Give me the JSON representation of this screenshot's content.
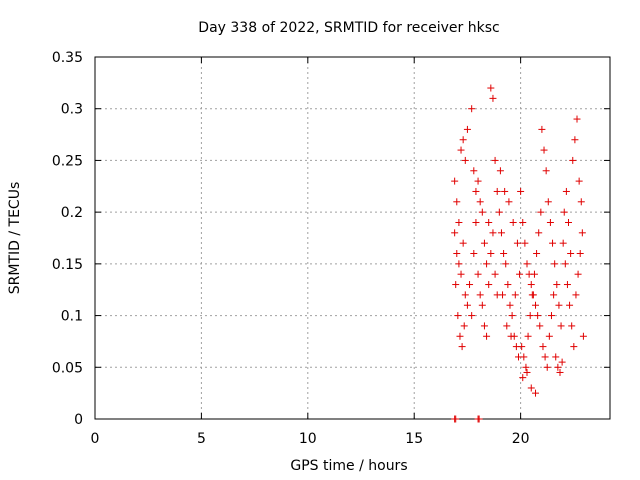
{
  "chart_data": {
    "type": "scatter",
    "title": "Day 338 of 2022, SRMTID for receiver hksc",
    "xlabel": "GPS time / hours",
    "ylabel": "SRMTID / TECUs",
    "xlim": [
      0,
      24.2
    ],
    "ylim": [
      0,
      0.35
    ],
    "xticks": [
      0,
      5,
      10,
      15,
      20
    ],
    "xtick_labels": [
      "0",
      "5",
      "10",
      "15",
      "20"
    ],
    "yticks": [
      0,
      0.05,
      0.1,
      0.15,
      0.2,
      0.25,
      0.3,
      0.35
    ],
    "ytick_labels": [
      "0",
      "0.05",
      "0.1",
      "0.15",
      "0.2",
      "0.25",
      "0.3",
      "0.35"
    ],
    "grid": true,
    "marker": "+",
    "color": "#e00000",
    "series": [
      {
        "name": "SRMTID",
        "points": [
          [
            16.9,
            0.0
          ],
          [
            16.95,
            0.0
          ],
          [
            18.0,
            0.0
          ],
          [
            18.05,
            0.0
          ],
          [
            16.9,
            0.23
          ],
          [
            17.0,
            0.21
          ],
          [
            17.1,
            0.19
          ],
          [
            17.2,
            0.26
          ],
          [
            17.3,
            0.27
          ],
          [
            17.4,
            0.25
          ],
          [
            17.5,
            0.28
          ],
          [
            17.7,
            0.3
          ],
          [
            17.8,
            0.24
          ],
          [
            17.9,
            0.22
          ],
          [
            16.9,
            0.18
          ],
          [
            17.0,
            0.16
          ],
          [
            17.1,
            0.15
          ],
          [
            17.2,
            0.14
          ],
          [
            17.3,
            0.17
          ],
          [
            17.4,
            0.12
          ],
          [
            17.5,
            0.11
          ],
          [
            17.6,
            0.13
          ],
          [
            17.7,
            0.1
          ],
          [
            17.8,
            0.16
          ],
          [
            17.9,
            0.19
          ],
          [
            16.95,
            0.13
          ],
          [
            17.05,
            0.1
          ],
          [
            17.15,
            0.08
          ],
          [
            17.25,
            0.07
          ],
          [
            17.35,
            0.09
          ],
          [
            18.0,
            0.23
          ],
          [
            18.1,
            0.21
          ],
          [
            18.2,
            0.2
          ],
          [
            18.3,
            0.17
          ],
          [
            18.4,
            0.15
          ],
          [
            18.5,
            0.19
          ],
          [
            18.6,
            0.32
          ],
          [
            18.7,
            0.31
          ],
          [
            18.8,
            0.25
          ],
          [
            18.9,
            0.22
          ],
          [
            18.0,
            0.14
          ],
          [
            18.1,
            0.12
          ],
          [
            18.2,
            0.11
          ],
          [
            18.3,
            0.09
          ],
          [
            18.4,
            0.08
          ],
          [
            18.5,
            0.13
          ],
          [
            18.6,
            0.16
          ],
          [
            18.7,
            0.18
          ],
          [
            18.8,
            0.14
          ],
          [
            18.9,
            0.12
          ],
          [
            19.0,
            0.2
          ],
          [
            19.1,
            0.18
          ],
          [
            19.2,
            0.16
          ],
          [
            19.3,
            0.15
          ],
          [
            19.4,
            0.13
          ],
          [
            19.5,
            0.11
          ],
          [
            19.6,
            0.1
          ],
          [
            19.7,
            0.08
          ],
          [
            19.8,
            0.07
          ],
          [
            19.9,
            0.06
          ],
          [
            19.05,
            0.24
          ],
          [
            19.25,
            0.22
          ],
          [
            19.45,
            0.21
          ],
          [
            19.65,
            0.19
          ],
          [
            19.85,
            0.17
          ],
          [
            19.15,
            0.12
          ],
          [
            19.35,
            0.09
          ],
          [
            19.55,
            0.08
          ],
          [
            19.75,
            0.12
          ],
          [
            19.95,
            0.14
          ],
          [
            20.0,
            0.22
          ],
          [
            20.1,
            0.19
          ],
          [
            20.2,
            0.17
          ],
          [
            20.3,
            0.15
          ],
          [
            20.4,
            0.14
          ],
          [
            20.5,
            0.13
          ],
          [
            20.6,
            0.12
          ],
          [
            20.7,
            0.11
          ],
          [
            20.8,
            0.1
          ],
          [
            20.9,
            0.09
          ],
          [
            20.05,
            0.07
          ],
          [
            20.15,
            0.06
          ],
          [
            20.25,
            0.05
          ],
          [
            20.35,
            0.08
          ],
          [
            20.45,
            0.1
          ],
          [
            20.55,
            0.12
          ],
          [
            20.65,
            0.14
          ],
          [
            20.75,
            0.16
          ],
          [
            20.85,
            0.18
          ],
          [
            20.95,
            0.2
          ],
          [
            20.1,
            0.04
          ],
          [
            20.5,
            0.03
          ],
          [
            20.7,
            0.025
          ],
          [
            20.3,
            0.045
          ],
          [
            21.0,
            0.28
          ],
          [
            21.1,
            0.26
          ],
          [
            21.2,
            0.24
          ],
          [
            21.3,
            0.21
          ],
          [
            21.4,
            0.19
          ],
          [
            21.5,
            0.17
          ],
          [
            21.6,
            0.15
          ],
          [
            21.7,
            0.13
          ],
          [
            21.8,
            0.11
          ],
          [
            21.9,
            0.09
          ],
          [
            21.05,
            0.07
          ],
          [
            21.15,
            0.06
          ],
          [
            21.25,
            0.05
          ],
          [
            21.35,
            0.08
          ],
          [
            21.45,
            0.1
          ],
          [
            21.55,
            0.12
          ],
          [
            21.65,
            0.06
          ],
          [
            21.75,
            0.05
          ],
          [
            21.85,
            0.045
          ],
          [
            21.95,
            0.055
          ],
          [
            22.0,
            0.17
          ],
          [
            22.1,
            0.15
          ],
          [
            22.2,
            0.13
          ],
          [
            22.3,
            0.11
          ],
          [
            22.4,
            0.09
          ],
          [
            22.5,
            0.07
          ],
          [
            22.6,
            0.12
          ],
          [
            22.7,
            0.14
          ],
          [
            22.8,
            0.16
          ],
          [
            22.9,
            0.18
          ],
          [
            22.05,
            0.2
          ],
          [
            22.15,
            0.22
          ],
          [
            22.25,
            0.19
          ],
          [
            22.35,
            0.16
          ],
          [
            22.45,
            0.25
          ],
          [
            22.55,
            0.27
          ],
          [
            22.65,
            0.29
          ],
          [
            22.75,
            0.23
          ],
          [
            22.85,
            0.21
          ],
          [
            22.95,
            0.08
          ]
        ]
      }
    ]
  }
}
